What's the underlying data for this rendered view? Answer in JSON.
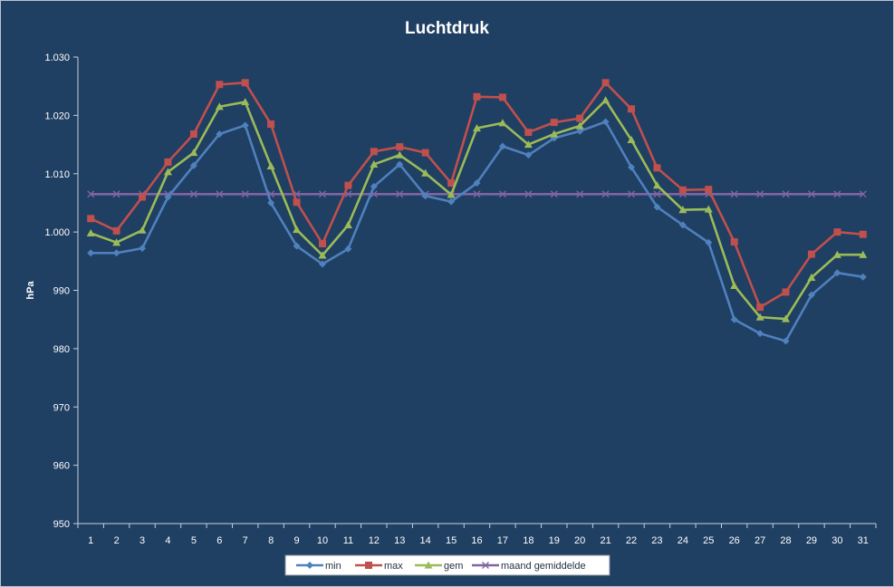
{
  "chart_data": {
    "type": "line",
    "title": "Luchtdruk",
    "xlabel": "",
    "ylabel": "hPa",
    "ylim": [
      950,
      1030
    ],
    "yticks": [
      950,
      960,
      970,
      980,
      990,
      1000,
      1010,
      1020,
      1030
    ],
    "ytick_labels": [
      "950",
      "960",
      "970",
      "980",
      "990",
      "1.000",
      "1.010",
      "1.020",
      "1.030"
    ],
    "categories": [
      "1",
      "2",
      "3",
      "4",
      "5",
      "6",
      "7",
      "8",
      "9",
      "10",
      "11",
      "12",
      "13",
      "14",
      "15",
      "16",
      "17",
      "18",
      "19",
      "20",
      "21",
      "22",
      "23",
      "24",
      "25",
      "26",
      "27",
      "28",
      "29",
      "30",
      "31"
    ],
    "grid": false,
    "legend": "bottom",
    "series": [
      {
        "name": "min",
        "color": "#4f81bd",
        "marker": "diamond",
        "values": [
          996.4,
          996.4,
          997.2,
          1006.0,
          1011.4,
          1016.8,
          1018.3,
          1005.0,
          997.6,
          994.5,
          997.1,
          1007.8,
          1011.6,
          1006.2,
          1005.2,
          1008.4,
          1014.7,
          1013.2,
          1016.1,
          1017.3,
          1018.9,
          1011.1,
          1004.3,
          1001.2,
          998.2,
          985.0,
          982.6,
          981.3,
          989.2,
          993.0,
          992.3
        ]
      },
      {
        "name": "max",
        "color": "#c0504d",
        "marker": "square",
        "values": [
          1002.3,
          1000.2,
          1006.0,
          1012.0,
          1016.8,
          1025.3,
          1025.6,
          1018.5,
          1005.1,
          998.0,
          1008.0,
          1013.8,
          1014.6,
          1013.6,
          1008.4,
          1023.2,
          1023.1,
          1017.1,
          1018.8,
          1019.5,
          1025.6,
          1021.1,
          1011.0,
          1007.2,
          1007.3,
          998.3,
          987.1,
          989.7,
          996.2,
          1000.0,
          999.6
        ]
      },
      {
        "name": "gem",
        "color": "#9bbb59",
        "marker": "triangle",
        "values": [
          999.8,
          998.2,
          1000.3,
          1010.3,
          1013.6,
          1021.5,
          1022.3,
          1011.3,
          1000.4,
          996.0,
          1001.2,
          1011.6,
          1013.2,
          1010.1,
          1006.4,
          1017.8,
          1018.7,
          1015.0,
          1016.8,
          1018.2,
          1022.6,
          1015.8,
          1008.0,
          1003.8,
          1003.9,
          990.8,
          985.4,
          985.1,
          992.2,
          996.1,
          996.1
        ]
      },
      {
        "name": "maand gemiddelde",
        "color": "#8064a2",
        "marker": "x",
        "values": [
          1006.5,
          1006.5,
          1006.5,
          1006.5,
          1006.5,
          1006.5,
          1006.5,
          1006.5,
          1006.5,
          1006.5,
          1006.5,
          1006.5,
          1006.5,
          1006.5,
          1006.5,
          1006.5,
          1006.5,
          1006.5,
          1006.5,
          1006.5,
          1006.5,
          1006.5,
          1006.5,
          1006.5,
          1006.5,
          1006.5,
          1006.5,
          1006.5,
          1006.5,
          1006.5,
          1006.5
        ]
      }
    ]
  }
}
